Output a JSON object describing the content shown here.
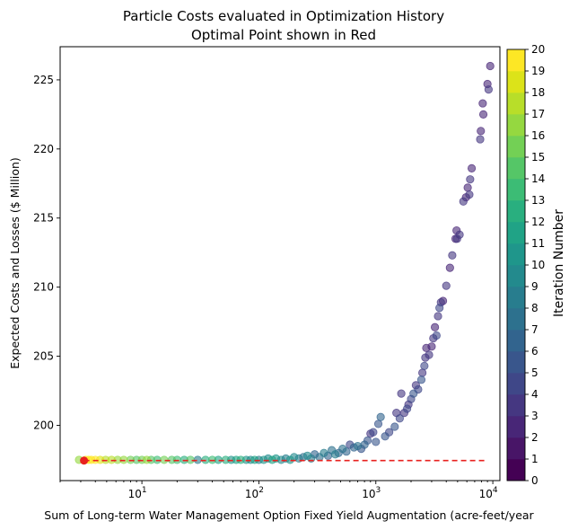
{
  "chart_data": {
    "type": "scatter",
    "title": "Particle Costs evaluated in Optimization History",
    "subtitle": "Optimal Point shown in Red",
    "xlabel": "Sum of Long-term Water Management Option Fixed Yield Augmentation (acre-feet/year",
    "ylabel": "Expected Costs and Losses ($ Million)",
    "xscale": "log",
    "xlim": [
      2.0,
      11500
    ],
    "ylim": [
      196.0,
      227.4
    ],
    "xticks": [
      {
        "value": 10,
        "base": "10",
        "exp": "1"
      },
      {
        "value": 100,
        "base": "10",
        "exp": "2"
      },
      {
        "value": 1000,
        "base": "10",
        "exp": "3"
      },
      {
        "value": 10000,
        "base": "10",
        "exp": "4"
      }
    ],
    "yticks": [
      200,
      205,
      210,
      215,
      220,
      225
    ],
    "grid": false,
    "colorbar": {
      "label": "Iteration Number",
      "colormap": "viridis",
      "ticks": [
        "0",
        "1",
        "2",
        "3",
        "4",
        "5",
        "6",
        "7",
        "8",
        "9",
        "10",
        "11",
        "12",
        "13",
        "14",
        "15",
        "16",
        "17",
        "18",
        "19",
        "20"
      ],
      "range": [
        0,
        20
      ]
    },
    "optimal_point": {
      "x": 3.2,
      "y": 197.45,
      "color": "#e8211f"
    },
    "optimal_line": {
      "y": 197.45,
      "x_from": 3.2,
      "x_to": 9000,
      "color": "#e8211f",
      "style": "dashed"
    },
    "series": [
      {
        "points": [
          {
            "x": 9500,
            "y": 226.0,
            "iter": 2
          },
          {
            "x": 9000,
            "y": 224.7,
            "iter": 2
          },
          {
            "x": 9200,
            "y": 224.3,
            "iter": 3
          },
          {
            "x": 8200,
            "y": 223.3,
            "iter": 2
          },
          {
            "x": 8300,
            "y": 222.5,
            "iter": 2
          },
          {
            "x": 7900,
            "y": 221.3,
            "iter": 2
          },
          {
            "x": 7800,
            "y": 220.7,
            "iter": 3
          },
          {
            "x": 6600,
            "y": 218.6,
            "iter": 2
          },
          {
            "x": 6400,
            "y": 217.8,
            "iter": 3
          },
          {
            "x": 6100,
            "y": 217.2,
            "iter": 2
          },
          {
            "x": 6300,
            "y": 216.7,
            "iter": 3
          },
          {
            "x": 5900,
            "y": 216.5,
            "iter": 2
          },
          {
            "x": 5600,
            "y": 216.2,
            "iter": 3
          },
          {
            "x": 4900,
            "y": 214.1,
            "iter": 2
          },
          {
            "x": 5200,
            "y": 213.8,
            "iter": 3
          },
          {
            "x": 4800,
            "y": 213.5,
            "iter": 2
          },
          {
            "x": 4950,
            "y": 213.5,
            "iter": 3
          },
          {
            "x": 4500,
            "y": 212.3,
            "iter": 3
          },
          {
            "x": 4300,
            "y": 211.4,
            "iter": 2
          },
          {
            "x": 4000,
            "y": 210.1,
            "iter": 3
          },
          {
            "x": 3750,
            "y": 209.0,
            "iter": 2
          },
          {
            "x": 3600,
            "y": 208.9,
            "iter": 3
          },
          {
            "x": 3500,
            "y": 208.5,
            "iter": 4
          },
          {
            "x": 3400,
            "y": 207.9,
            "iter": 3
          },
          {
            "x": 3200,
            "y": 207.1,
            "iter": 2
          },
          {
            "x": 3300,
            "y": 206.5,
            "iter": 4
          },
          {
            "x": 3100,
            "y": 206.3,
            "iter": 3
          },
          {
            "x": 3000,
            "y": 205.7,
            "iter": 2
          },
          {
            "x": 2850,
            "y": 205.1,
            "iter": 3
          },
          {
            "x": 2700,
            "y": 205.6,
            "iter": 2
          },
          {
            "x": 2650,
            "y": 204.9,
            "iter": 3
          },
          {
            "x": 2600,
            "y": 204.3,
            "iter": 4
          },
          {
            "x": 2500,
            "y": 203.8,
            "iter": 3
          },
          {
            "x": 2450,
            "y": 203.3,
            "iter": 5
          },
          {
            "x": 2300,
            "y": 202.6,
            "iter": 4
          },
          {
            "x": 2200,
            "y": 202.9,
            "iter": 3
          },
          {
            "x": 2100,
            "y": 202.3,
            "iter": 5
          },
          {
            "x": 2000,
            "y": 201.9,
            "iter": 4
          },
          {
            "x": 1900,
            "y": 201.5,
            "iter": 3
          },
          {
            "x": 1850,
            "y": 201.2,
            "iter": 4
          },
          {
            "x": 1750,
            "y": 200.9,
            "iter": 3
          },
          {
            "x": 1650,
            "y": 202.3,
            "iter": 3
          },
          {
            "x": 1600,
            "y": 200.5,
            "iter": 4
          },
          {
            "x": 1500,
            "y": 200.9,
            "iter": 3
          },
          {
            "x": 1450,
            "y": 199.9,
            "iter": 5
          },
          {
            "x": 1300,
            "y": 199.5,
            "iter": 4
          },
          {
            "x": 1200,
            "y": 199.2,
            "iter": 5
          },
          {
            "x": 1100,
            "y": 200.6,
            "iter": 6
          },
          {
            "x": 1050,
            "y": 200.1,
            "iter": 5
          },
          {
            "x": 1000,
            "y": 198.8,
            "iter": 5
          },
          {
            "x": 950,
            "y": 199.5,
            "iter": 4
          },
          {
            "x": 900,
            "y": 199.4,
            "iter": 3
          },
          {
            "x": 850,
            "y": 198.9,
            "iter": 5
          },
          {
            "x": 800,
            "y": 198.6,
            "iter": 6
          },
          {
            "x": 750,
            "y": 198.3,
            "iter": 5
          },
          {
            "x": 700,
            "y": 198.5,
            "iter": 7
          },
          {
            "x": 650,
            "y": 198.4,
            "iter": 6
          },
          {
            "x": 600,
            "y": 198.6,
            "iter": 4
          },
          {
            "x": 560,
            "y": 198.1,
            "iter": 6
          },
          {
            "x": 520,
            "y": 198.3,
            "iter": 7
          },
          {
            "x": 480,
            "y": 198.0,
            "iter": 6
          },
          {
            "x": 450,
            "y": 197.9,
            "iter": 8
          },
          {
            "x": 420,
            "y": 198.2,
            "iter": 7
          },
          {
            "x": 390,
            "y": 197.8,
            "iter": 6
          },
          {
            "x": 360,
            "y": 198.0,
            "iter": 8
          },
          {
            "x": 330,
            "y": 197.7,
            "iter": 7
          },
          {
            "x": 300,
            "y": 197.9,
            "iter": 6
          },
          {
            "x": 280,
            "y": 197.6,
            "iter": 8
          },
          {
            "x": 260,
            "y": 197.8,
            "iter": 9
          },
          {
            "x": 240,
            "y": 197.7,
            "iter": 7
          },
          {
            "x": 220,
            "y": 197.6,
            "iter": 8
          },
          {
            "x": 200,
            "y": 197.7,
            "iter": 9
          },
          {
            "x": 185,
            "y": 197.5,
            "iter": 10
          },
          {
            "x": 170,
            "y": 197.6,
            "iter": 8
          },
          {
            "x": 155,
            "y": 197.5,
            "iter": 9
          },
          {
            "x": 140,
            "y": 197.6,
            "iter": 10
          },
          {
            "x": 130,
            "y": 197.5,
            "iter": 11
          },
          {
            "x": 120,
            "y": 197.6,
            "iter": 9
          },
          {
            "x": 110,
            "y": 197.5,
            "iter": 10
          },
          {
            "x": 100,
            "y": 197.5,
            "iter": 8
          },
          {
            "x": 92,
            "y": 197.5,
            "iter": 11
          },
          {
            "x": 85,
            "y": 197.5,
            "iter": 9
          },
          {
            "x": 78,
            "y": 197.5,
            "iter": 10
          },
          {
            "x": 70,
            "y": 197.5,
            "iter": 12
          },
          {
            "x": 64,
            "y": 197.5,
            "iter": 11
          },
          {
            "x": 58,
            "y": 197.5,
            "iter": 10
          },
          {
            "x": 52,
            "y": 197.5,
            "iter": 12
          },
          {
            "x": 45,
            "y": 197.5,
            "iter": 11
          },
          {
            "x": 40,
            "y": 197.5,
            "iter": 13
          },
          {
            "x": 35,
            "y": 197.5,
            "iter": 12
          },
          {
            "x": 30,
            "y": 197.5,
            "iter": 8
          },
          {
            "x": 26,
            "y": 197.5,
            "iter": 14
          },
          {
            "x": 23,
            "y": 197.5,
            "iter": 12
          },
          {
            "x": 20,
            "y": 197.5,
            "iter": 13
          },
          {
            "x": 18,
            "y": 197.5,
            "iter": 14
          },
          {
            "x": 15.5,
            "y": 197.5,
            "iter": 15
          },
          {
            "x": 13.5,
            "y": 197.5,
            "iter": 13
          },
          {
            "x": 12,
            "y": 197.5,
            "iter": 14
          },
          {
            "x": 11,
            "y": 197.5,
            "iter": 16
          },
          {
            "x": 10,
            "y": 197.5,
            "iter": 15
          },
          {
            "x": 9,
            "y": 197.5,
            "iter": 14
          },
          {
            "x": 8,
            "y": 197.5,
            "iter": 15
          },
          {
            "x": 7,
            "y": 197.5,
            "iter": 16
          },
          {
            "x": 6.2,
            "y": 197.5,
            "iter": 16
          },
          {
            "x": 5.5,
            "y": 197.5,
            "iter": 17
          },
          {
            "x": 4.9,
            "y": 197.5,
            "iter": 17
          },
          {
            "x": 4.4,
            "y": 197.5,
            "iter": 18
          },
          {
            "x": 4.0,
            "y": 197.5,
            "iter": 19
          },
          {
            "x": 3.7,
            "y": 197.5,
            "iter": 20
          },
          {
            "x": 3.5,
            "y": 197.5,
            "iter": 19
          },
          {
            "x": 3.3,
            "y": 197.5,
            "iter": 20
          },
          {
            "x": 2.9,
            "y": 197.5,
            "iter": 16
          }
        ]
      }
    ]
  }
}
